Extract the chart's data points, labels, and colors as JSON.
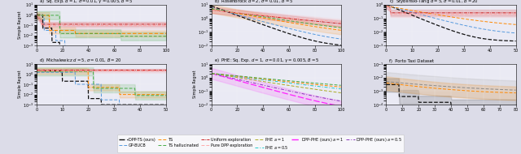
{
  "fig_width": 6.4,
  "fig_height": 1.9,
  "bg_color": "#dcdce8",
  "ax_bg": "#eaeaf4",
  "titles": [
    "a)  Sq. Exp. $d=1$, $\\sigma=0.01$, $\\gamma=0.005$, $B=5$",
    "b)  Rosenbrock $d=2$, $\\sigma=0.01$, $B=5$",
    "c)  Styblinski-Tang $d=5$, $\\sigma=0.01$, $B=20$",
    "d)  Michalewicz $d=5$, $\\sigma=0.01$, $B=20$",
    "e)  PHE: Sq. Exp. $d=1$, $\\sigma=0.01$, $\\gamma=0.005$, $B=5$",
    "f)  Porto Taxi Dataset"
  ],
  "colors": {
    "dpp_ts": "#111111",
    "gp_bucb": "#5599dd",
    "ts": "#ff8800",
    "ts_hall": "#44aa44",
    "uniform": "#cc2222",
    "pure_dpp": "#ffaaaa",
    "phe_1": "#aaaa22",
    "phe_05": "#22cccc",
    "dpp_phe_1": "#ff22ff",
    "dpp_phe_05": "#8833bb"
  }
}
